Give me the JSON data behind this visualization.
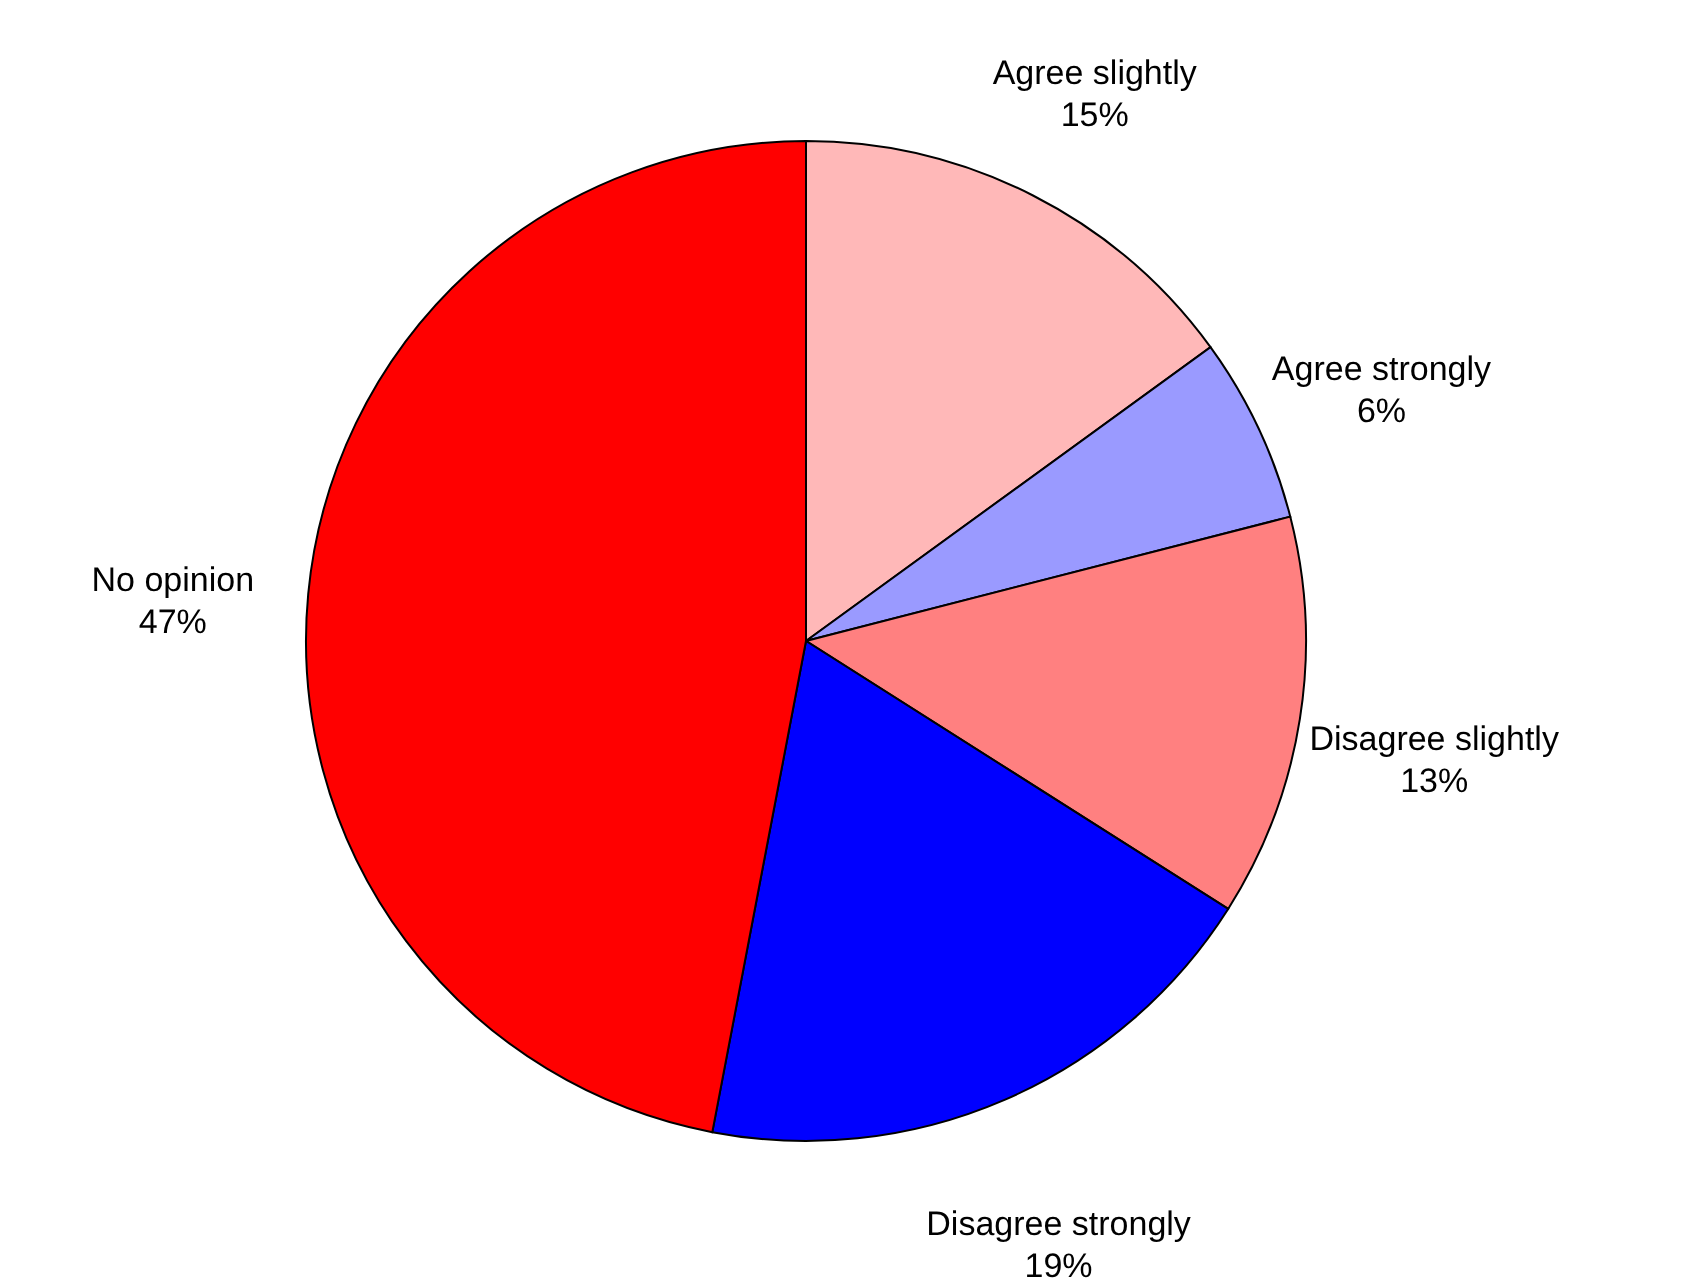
{
  "chart_data": {
    "type": "pie",
    "categories": [
      "Agree slightly",
      "Agree strongly",
      "Disagree slightly",
      "Disagree strongly",
      "No opinion"
    ],
    "values": [
      15,
      6,
      13,
      19,
      47
    ],
    "colors": [
      "#ffb8b8",
      "#9a9aff",
      "#ff8080",
      "#0000ff",
      "#ff0000"
    ],
    "value_labels": [
      "15%",
      "6%",
      "13%",
      "19%",
      "47%"
    ]
  }
}
